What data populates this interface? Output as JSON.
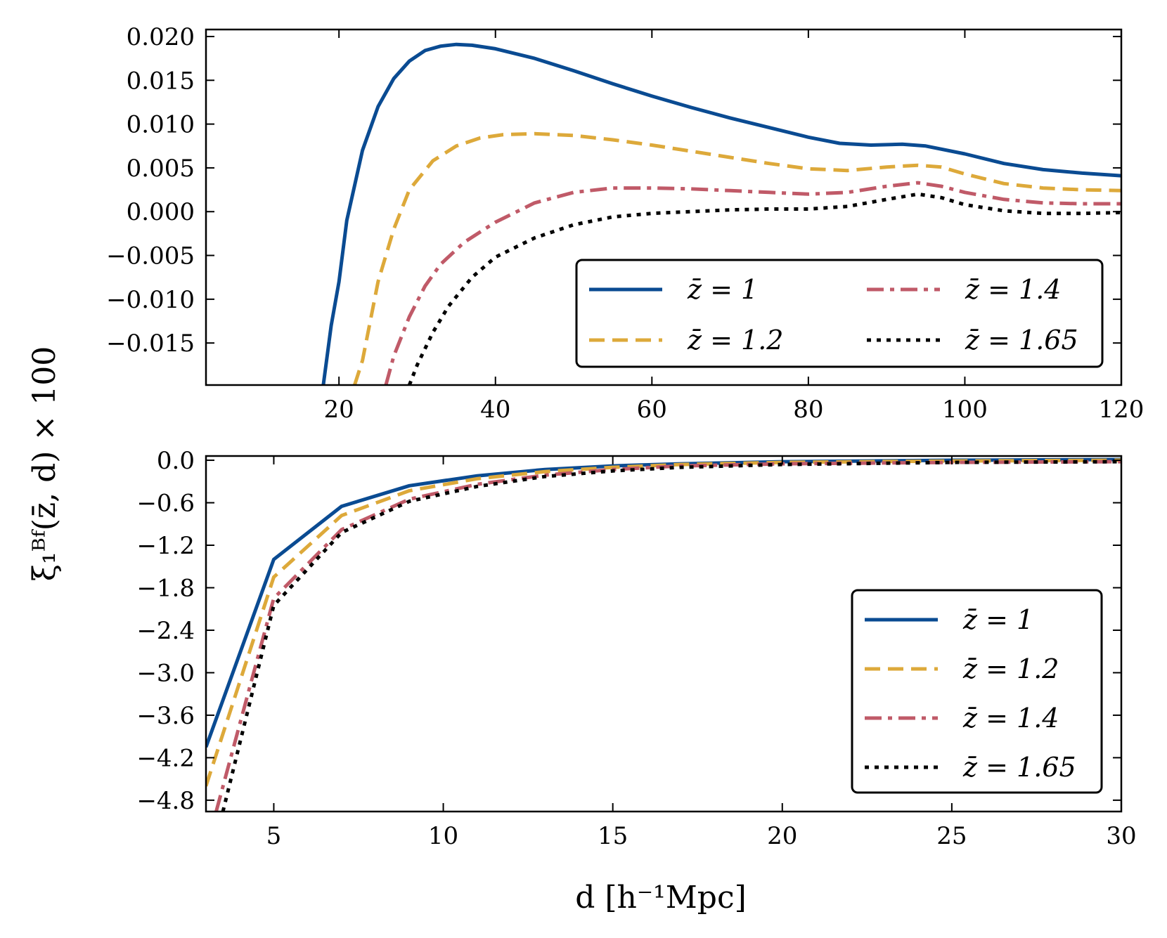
{
  "figure": {
    "ylabel": "ξ₁ᴮᶠ(z̄, d) × 100",
    "xlabel": "d [h⁻¹Mpc]"
  },
  "colors": {
    "z1": "#0a4b92",
    "z1_2": "#dda93a",
    "z1_4": "#c05a68",
    "z1_65": "#000000"
  },
  "chart_data": [
    {
      "type": "line",
      "panel": "top",
      "xlim": [
        3,
        120
      ],
      "ylim": [
        -0.0198,
        0.0208
      ],
      "xticks": [
        20,
        40,
        60,
        80,
        100,
        120
      ],
      "xtick_labels": [
        "20",
        "40",
        "60",
        "80",
        "100",
        "120"
      ],
      "yticks": [
        0.02,
        0.015,
        0.01,
        0.005,
        0.0,
        -0.005,
        -0.01,
        -0.015
      ],
      "ytick_labels": [
        "0.020",
        "0.015",
        "0.010",
        "0.005",
        "0.000",
        "−0.005",
        "−0.010",
        "−0.015"
      ],
      "legend": {
        "placement": "lower-right",
        "columns": 2
      },
      "series": [
        {
          "name": "z̄ = 1",
          "style": "solid",
          "color": "#0a4b92",
          "points": [
            [
              18.0,
              -0.0198
            ],
            [
              19.0,
              -0.013
            ],
            [
              20.0,
              -0.008
            ],
            [
              21.0,
              -0.001
            ],
            [
              23.0,
              0.007
            ],
            [
              25.0,
              0.012
            ],
            [
              27.0,
              0.0152
            ],
            [
              29.0,
              0.0172
            ],
            [
              31.0,
              0.0184
            ],
            [
              33.0,
              0.0189
            ],
            [
              35.0,
              0.0191
            ],
            [
              37.0,
              0.019
            ],
            [
              40.0,
              0.0186
            ],
            [
              45.0,
              0.0175
            ],
            [
              50.0,
              0.0161
            ],
            [
              55.0,
              0.0146
            ],
            [
              60.0,
              0.0132
            ],
            [
              65.0,
              0.0119
            ],
            [
              70.0,
              0.0107
            ],
            [
              75.0,
              0.0096
            ],
            [
              80.0,
              0.0085
            ],
            [
              84.0,
              0.0078
            ],
            [
              88.0,
              0.0076
            ],
            [
              92.0,
              0.0077
            ],
            [
              95.0,
              0.0075
            ],
            [
              100.0,
              0.0066
            ],
            [
              105.0,
              0.0055
            ],
            [
              110.0,
              0.0048
            ],
            [
              115.0,
              0.0044
            ],
            [
              120.0,
              0.0041
            ]
          ]
        },
        {
          "name": "z̄ = 1.2",
          "style": "dashed",
          "color": "#dda93a",
          "points": [
            [
              22.0,
              -0.0198
            ],
            [
              23.0,
              -0.017
            ],
            [
              25.0,
              -0.008
            ],
            [
              27.0,
              -0.002
            ],
            [
              29.0,
              0.0025
            ],
            [
              32.0,
              0.0058
            ],
            [
              35.0,
              0.0075
            ],
            [
              38.0,
              0.0084
            ],
            [
              41.0,
              0.0088
            ],
            [
              45.0,
              0.0089
            ],
            [
              50.0,
              0.0087
            ],
            [
              55.0,
              0.0082
            ],
            [
              60.0,
              0.0076
            ],
            [
              65.0,
              0.0069
            ],
            [
              70.0,
              0.0062
            ],
            [
              75.0,
              0.0055
            ],
            [
              80.0,
              0.0049
            ],
            [
              85.0,
              0.0047
            ],
            [
              90.0,
              0.0051
            ],
            [
              94.0,
              0.0053
            ],
            [
              97.0,
              0.0051
            ],
            [
              100.0,
              0.0043
            ],
            [
              105.0,
              0.0032
            ],
            [
              110.0,
              0.0027
            ],
            [
              115.0,
              0.0025
            ],
            [
              120.0,
              0.0024
            ]
          ]
        },
        {
          "name": "z̄ = 1.4",
          "style": "dashdot",
          "color": "#c05a68",
          "points": [
            [
              26.0,
              -0.0198
            ],
            [
              27.0,
              -0.0165
            ],
            [
              29.0,
              -0.012
            ],
            [
              31.0,
              -0.0085
            ],
            [
              33.0,
              -0.006
            ],
            [
              36.0,
              -0.0035
            ],
            [
              40.0,
              -0.0012
            ],
            [
              45.0,
              0.001
            ],
            [
              50.0,
              0.0022
            ],
            [
              55.0,
              0.0027
            ],
            [
              60.0,
              0.0027
            ],
            [
              65.0,
              0.0026
            ],
            [
              70.0,
              0.0024
            ],
            [
              75.0,
              0.0022
            ],
            [
              80.0,
              0.002
            ],
            [
              85.0,
              0.0022
            ],
            [
              90.0,
              0.0029
            ],
            [
              94.0,
              0.0033
            ],
            [
              97.0,
              0.0029
            ],
            [
              100.0,
              0.0022
            ],
            [
              105.0,
              0.0014
            ],
            [
              110.0,
              0.001
            ],
            [
              115.0,
              0.0009
            ],
            [
              120.0,
              0.0009
            ]
          ]
        },
        {
          "name": "z̄ = 1.65",
          "style": "dotted",
          "color": "#000000",
          "points": [
            [
              29.0,
              -0.0198
            ],
            [
              30.0,
              -0.0175
            ],
            [
              32.0,
              -0.0138
            ],
            [
              34.0,
              -0.0108
            ],
            [
              37.0,
              -0.0075
            ],
            [
              40.0,
              -0.0052
            ],
            [
              45.0,
              -0.003
            ],
            [
              50.0,
              -0.0015
            ],
            [
              55.0,
              -0.0006
            ],
            [
              60.0,
              -0.0002
            ],
            [
              65.0,
              0.0
            ],
            [
              70.0,
              0.0002
            ],
            [
              75.0,
              0.0003
            ],
            [
              80.0,
              0.0003
            ],
            [
              85.0,
              0.0006
            ],
            [
              90.0,
              0.0014
            ],
            [
              94.0,
              0.002
            ],
            [
              97.0,
              0.0016
            ],
            [
              100.0,
              0.0008
            ],
            [
              105.0,
              0.0001
            ],
            [
              110.0,
              -0.0002
            ],
            [
              115.0,
              -0.0002
            ],
            [
              120.0,
              -0.0001
            ]
          ]
        }
      ]
    },
    {
      "type": "line",
      "panel": "bottom",
      "xlim": [
        3,
        30
      ],
      "ylim": [
        -4.96,
        0.06
      ],
      "xticks": [
        5,
        10,
        15,
        20,
        25,
        30
      ],
      "xtick_labels": [
        "5",
        "10",
        "15",
        "20",
        "25",
        "30"
      ],
      "yticks": [
        0.0,
        -0.6,
        -1.2,
        -1.8,
        -2.4,
        -3.0,
        -3.6,
        -4.2,
        -4.8
      ],
      "ytick_labels": [
        "0.0",
        "−0.6",
        "−1.2",
        "−1.8",
        "−2.4",
        "−3.0",
        "−3.6",
        "−4.2",
        "−4.8"
      ],
      "legend": {
        "placement": "lower-right",
        "columns": 1
      },
      "series": [
        {
          "name": "z̄ = 1",
          "style": "solid",
          "color": "#0a4b92",
          "points": [
            [
              3.0,
              -4.05
            ],
            [
              5.0,
              -1.4
            ],
            [
              7.0,
              -0.65
            ],
            [
              9.0,
              -0.36
            ],
            [
              11.0,
              -0.22
            ],
            [
              13.0,
              -0.13
            ],
            [
              15.0,
              -0.08
            ],
            [
              17.0,
              -0.05
            ],
            [
              20.0,
              -0.02
            ],
            [
              25.0,
              0.0
            ],
            [
              30.0,
              0.01
            ]
          ]
        },
        {
          "name": "z̄ = 1.2",
          "style": "dashed",
          "color": "#dda93a",
          "points": [
            [
              3.0,
              -4.6
            ],
            [
              5.0,
              -1.65
            ],
            [
              7.0,
              -0.78
            ],
            [
              9.0,
              -0.43
            ],
            [
              11.0,
              -0.26
            ],
            [
              13.0,
              -0.16
            ],
            [
              15.0,
              -0.1
            ],
            [
              17.0,
              -0.06
            ],
            [
              20.0,
              -0.03
            ],
            [
              25.0,
              -0.01
            ],
            [
              30.0,
              0.0
            ]
          ]
        },
        {
          "name": "z̄ = 1.4",
          "style": "dashdot",
          "color": "#c05a68",
          "points": [
            [
              3.3,
              -4.96
            ],
            [
              5.0,
              -1.95
            ],
            [
              7.0,
              -0.98
            ],
            [
              9.0,
              -0.55
            ],
            [
              11.0,
              -0.34
            ],
            [
              13.0,
              -0.21
            ],
            [
              15.0,
              -0.13
            ],
            [
              17.0,
              -0.08
            ],
            [
              20.0,
              -0.05
            ],
            [
              25.0,
              -0.03
            ],
            [
              30.0,
              -0.02
            ]
          ]
        },
        {
          "name": "z̄ = 1.65",
          "style": "dotted",
          "color": "#000000",
          "points": [
            [
              3.5,
              -4.96
            ],
            [
              5.0,
              -2.05
            ],
            [
              7.0,
              -1.02
            ],
            [
              9.0,
              -0.58
            ],
            [
              11.0,
              -0.37
            ],
            [
              13.0,
              -0.23
            ],
            [
              15.0,
              -0.15
            ],
            [
              17.0,
              -0.1
            ],
            [
              20.0,
              -0.06
            ],
            [
              25.0,
              -0.03
            ],
            [
              30.0,
              -0.02
            ]
          ]
        }
      ]
    }
  ]
}
